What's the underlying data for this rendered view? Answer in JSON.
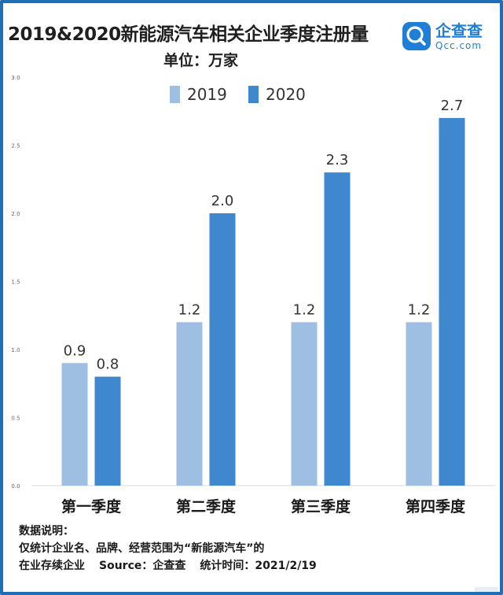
{
  "header": {
    "title": "2019&2020新能源汽车相关企业季度注册量",
    "unit": "单位：万家"
  },
  "logo": {
    "name": "企查查",
    "domain": "Qcc.com"
  },
  "footnote": {
    "heading": "数据说明：",
    "line1": "仅统计企业名、品牌、经营范围为“新能源汽车”的",
    "line2_prefix": "在业存续企业",
    "line2_source": "Source：企查查",
    "line2_time": "统计时间：2021/2/19"
  },
  "colors": {
    "series_2019": "#9fbfe2",
    "series_2020": "#3f87cf",
    "frame": "#1f6fb7"
  },
  "chart_data": {
    "type": "bar",
    "title": "2019&2020新能源汽车相关企业季度注册量",
    "ylabel": "单位：万家",
    "xlabel": "",
    "categories": [
      "第一季度",
      "第二季度",
      "第三季度",
      "第四季度"
    ],
    "series": [
      {
        "name": "2019",
        "values": [
          0.9,
          1.2,
          1.2,
          1.2
        ]
      },
      {
        "name": "2020",
        "values": [
          0.8,
          2.0,
          2.3,
          2.7
        ]
      }
    ],
    "value_labels": {
      "2019": [
        "0.9",
        "1.2",
        "1.2",
        "1.2"
      ],
      "2020": [
        "0.8",
        "2.0",
        "2.3",
        "2.7"
      ]
    },
    "ylim": [
      0,
      3.0
    ],
    "yticks": [
      "0.0",
      "0.5",
      "1.0",
      "1.5",
      "2.0",
      "2.5",
      "3.0"
    ],
    "legend": "top-center",
    "grid": false
  }
}
